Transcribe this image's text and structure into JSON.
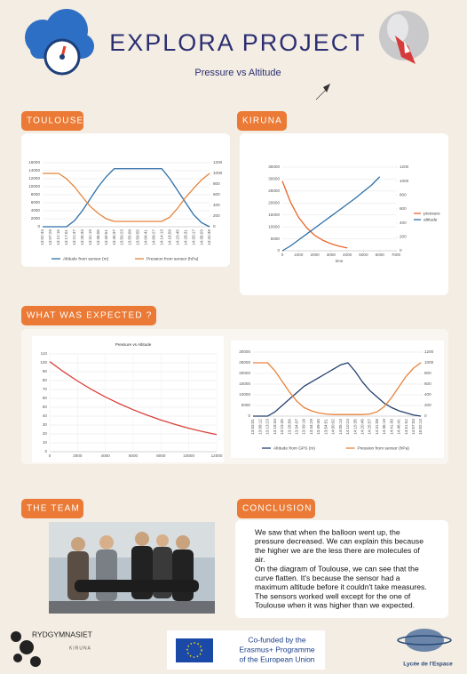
{
  "header": {
    "title": "EXPLORA PROJECT",
    "subtitle": "Pressure vs Altitude"
  },
  "sections": {
    "toulouse": "TOULOUSE",
    "kiruna": "KIRUNA",
    "expected": "WHAT WAS EXPECTED ?",
    "team": "THE TEAM",
    "conclusion": "CONCLUSION"
  },
  "conclusion": {
    "lines": [
      "We saw that when the balloon went up, the",
      "pressure decreased. We can explain this because",
      "the higher we are the less there are molecules of",
      "air.",
      "On the diagram of Toulouse, we can see that the",
      "curve flatten.  It's  because the sensor had a",
      "maximum altitude before it couldn't take measures.",
      "The sensors worked well except for the one of",
      "Toulouse when it was higher than we expected."
    ]
  },
  "logos": {
    "school": "RYDGYMNASIET",
    "school_city": "KIRUNA",
    "eu": [
      "Co-funded by the",
      "Erasmus+ Programme",
      "of the European Union"
    ],
    "lycee": "Lycée de l'Espace"
  },
  "chart_data": [
    {
      "type": "line",
      "grid": true,
      "legend": "bottom",
      "categories": [
        "13:02:43",
        "13:07:29",
        "13:12:15",
        "13:17:01",
        "13:21:47",
        "13:26:33",
        "13:31:19",
        "13:36:05",
        "13:40:51",
        "13:45:37",
        "13:50:23",
        "13:55:09",
        "13:59:55",
        "14:04:41",
        "14:09:27",
        "14:14:13",
        "14:18:59",
        "14:23:45",
        "14:28:31",
        "14:33:17",
        "14:38:03",
        "14:42:49"
      ],
      "ylim": [
        0,
        16000
      ],
      "yticks": [
        0,
        2000,
        4000,
        6000,
        8000,
        10000,
        12000,
        14000,
        16000
      ],
      "y2lim": [
        0,
        1200
      ],
      "y2ticks": [
        0,
        200,
        400,
        600,
        800,
        1000,
        1200
      ],
      "series": [
        {
          "name": "Altitude from sensor (m)",
          "color": "#2e6fa7",
          "values": [
            0,
            0,
            0,
            0,
            1500,
            4000,
            7000,
            10000,
            12500,
            14500,
            14500,
            14500,
            14500,
            14500,
            14500,
            14500,
            12000,
            9000,
            6000,
            3000,
            1000,
            0
          ]
        },
        {
          "name": "Pression from sensor (hPa)",
          "color": "#e8833a",
          "axis": "y2",
          "values": [
            1000,
            1000,
            1000,
            900,
            750,
            560,
            380,
            250,
            150,
            100,
            100,
            100,
            100,
            100,
            100,
            100,
            180,
            350,
            550,
            720,
            880,
            1000
          ]
        }
      ]
    },
    {
      "type": "line",
      "grid": true,
      "legend": "right",
      "xlabel": "time",
      "x": [
        0,
        500,
        1000,
        1500,
        2000,
        2500,
        3000,
        3500,
        4000,
        4500,
        5000,
        5500,
        6000
      ],
      "xlim": [
        0,
        7000
      ],
      "xticks": [
        0,
        1000,
        2000,
        3000,
        4000,
        5000,
        6000,
        7000
      ],
      "ylim": [
        0,
        35000
      ],
      "yticks": [
        0,
        5000,
        10000,
        15000,
        20000,
        25000,
        30000,
        35000
      ],
      "y2lim": [
        0,
        1200
      ],
      "y2ticks": [
        0,
        200,
        400,
        600,
        800,
        1000,
        1200
      ],
      "series": [
        {
          "name": "pressure",
          "color": "#e8652a",
          "axis": "y2",
          "values": [
            1000,
            700,
            480,
            330,
            220,
            150,
            100,
            65,
            40,
            null,
            null,
            null,
            null
          ]
        },
        {
          "name": "altitude",
          "color": "#2e6fa7",
          "values": [
            0,
            2000,
            4500,
            7000,
            9500,
            12000,
            14500,
            17000,
            19500,
            22000,
            24800,
            27500,
            31000
          ]
        }
      ]
    },
    {
      "type": "line",
      "grid": true,
      "title": "Pressure vs Altitude",
      "x": [
        0,
        1000,
        2000,
        3000,
        4000,
        5000,
        6000,
        7000,
        8000,
        9000,
        10000,
        11000,
        12000
      ],
      "xlim": [
        0,
        12000
      ],
      "xticks": [
        0,
        2000,
        4000,
        6000,
        8000,
        10000,
        12000
      ],
      "ylim": [
        0,
        110
      ],
      "yticks": [
        0,
        10,
        20,
        30,
        40,
        50,
        60,
        70,
        80,
        90,
        100,
        110
      ],
      "series": [
        {
          "name": "Pressure",
          "color": "#d9403a",
          "values": [
            101.3,
            89.9,
            79.5,
            70.1,
            61.6,
            54.0,
            47.2,
            41.1,
            35.6,
            30.7,
            26.4,
            22.6,
            19.3
          ]
        }
      ]
    },
    {
      "type": "line",
      "grid": true,
      "legend": "bottom",
      "categories": [
        "13:03:01",
        "13:08:12",
        "13:13:23",
        "13:18:34",
        "13:23:45",
        "13:28:56",
        "13:34:07",
        "13:39:18",
        "13:44:29",
        "13:49:40",
        "13:54:51",
        "14:00:02",
        "14:05:13",
        "14:10:24",
        "14:15:35",
        "14:20:46",
        "14:25:57",
        "14:31:08",
        "14:36:19",
        "14:41:30",
        "14:46:41",
        "14:51:52",
        "14:57:03",
        "15:02:14"
      ],
      "ylim": [
        0,
        30000
      ],
      "yticks": [
        0,
        5000,
        10000,
        15000,
        20000,
        25000,
        30000
      ],
      "y2lim": [
        0,
        1200
      ],
      "y2ticks": [
        0,
        200,
        400,
        600,
        800,
        1000,
        1200
      ],
      "series": [
        {
          "name": "Altitude from GPS (m)",
          "color": "#24406e",
          "values": [
            0,
            0,
            0,
            2000,
            5000,
            8000,
            11000,
            14000,
            16000,
            18000,
            20000,
            22000,
            24000,
            25000,
            21000,
            16000,
            12000,
            9000,
            6000,
            4000,
            2500,
            1500,
            500,
            0
          ]
        },
        {
          "name": "Pression from sensor (hPa)",
          "color": "#e8833a",
          "axis": "y2",
          "values": [
            1000,
            1000,
            1000,
            850,
            650,
            450,
            280,
            160,
            100,
            60,
            40,
            30,
            30,
            30,
            30,
            30,
            40,
            80,
            180,
            350,
            550,
            750,
            900,
            1000
          ]
        }
      ]
    }
  ]
}
